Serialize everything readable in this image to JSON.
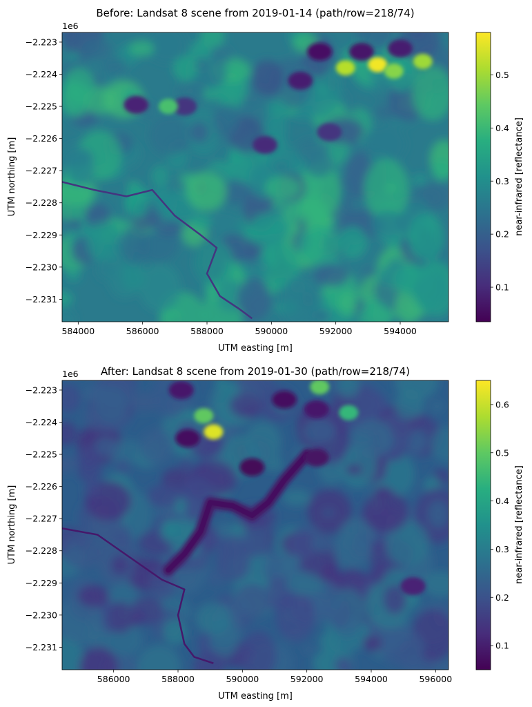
{
  "chart_data": [
    {
      "type": "heatmap",
      "title": "Before: Landsat 8 scene from 2019-01-14 (path/row=218/74)",
      "xlabel": "UTM easting [m]",
      "ylabel": "UTM northing [m]",
      "y_offset_label": "1e6",
      "xlim": [
        583500,
        595500
      ],
      "ylim": [
        -2231700,
        -2222700
      ],
      "xticks": [
        584000,
        586000,
        588000,
        590000,
        592000,
        594000
      ],
      "xtick_labels": [
        "584000",
        "586000",
        "588000",
        "590000",
        "592000",
        "594000"
      ],
      "yticks": [
        -2.223,
        -2.224,
        -2.225,
        -2.226,
        -2.227,
        -2.228,
        -2.229,
        -2.23,
        -2.231
      ],
      "ytick_labels": [
        "−2.223",
        "−2.224",
        "−2.225",
        "−2.226",
        "−2.227",
        "−2.228",
        "−2.229",
        "−2.230",
        "−2.231"
      ],
      "colorbar": {
        "label": "near-infrared [reflectance]",
        "range": [
          0.035,
          0.58
        ],
        "ticks": [
          0.1,
          0.2,
          0.3,
          0.4,
          0.5
        ],
        "tick_labels": [
          "0.1",
          "0.2",
          "0.3",
          "0.4",
          "0.5"
        ],
        "colormap": "viridis"
      },
      "features": {
        "river": [
          [
            583500,
            -2227350
          ],
          [
            584500,
            -2227600
          ],
          [
            585500,
            -2227800
          ],
          [
            586300,
            -2227600
          ],
          [
            587000,
            -2228400
          ],
          [
            587800,
            -2229000
          ],
          [
            588300,
            -2229400
          ],
          [
            588000,
            -2230200
          ],
          [
            588400,
            -2230900
          ],
          [
            589000,
            -2231300
          ],
          [
            589400,
            -2231600
          ]
        ],
        "dark_patches": [
          [
            585800,
            -2224950,
            0.09
          ],
          [
            587300,
            -2225000,
            0.12
          ],
          [
            589800,
            -2226200,
            0.1
          ],
          [
            590900,
            -2224200,
            0.08
          ],
          [
            591500,
            -2223300,
            0.06
          ],
          [
            592800,
            -2223300,
            0.07
          ],
          [
            594000,
            -2223200,
            0.08
          ],
          [
            591800,
            -2225800,
            0.12
          ]
        ],
        "bright_patches": [
          [
            592300,
            -2223800,
            0.52
          ],
          [
            593300,
            -2223700,
            0.57
          ],
          [
            593800,
            -2223900,
            0.48
          ],
          [
            594700,
            -2223600,
            0.5
          ],
          [
            586800,
            -2225000,
            0.42
          ]
        ]
      }
    },
    {
      "type": "heatmap",
      "title": "After: Landsat 8 scene from 2019-01-30 (path/row=218/74)",
      "xlabel": "UTM easting [m]",
      "ylabel": "UTM northing [m]",
      "y_offset_label": "1e6",
      "xlim": [
        584400,
        596400
      ],
      "ylim": [
        -2231700,
        -2222700
      ],
      "xticks": [
        586000,
        588000,
        590000,
        592000,
        594000,
        596000
      ],
      "xtick_labels": [
        "586000",
        "588000",
        "590000",
        "592000",
        "594000",
        "596000"
      ],
      "yticks": [
        -2.223,
        -2.224,
        -2.225,
        -2.226,
        -2.227,
        -2.228,
        -2.229,
        -2.23,
        -2.231
      ],
      "ytick_labels": [
        "−2.223",
        "−2.224",
        "−2.225",
        "−2.226",
        "−2.227",
        "−2.228",
        "−2.229",
        "−2.230",
        "−2.231"
      ],
      "colorbar": {
        "label": "near-infrared [reflectance]",
        "range": [
          0.05,
          0.65
        ],
        "ticks": [
          0.1,
          0.2,
          0.3,
          0.4,
          0.5,
          0.6
        ],
        "tick_labels": [
          "0.1",
          "0.2",
          "0.3",
          "0.4",
          "0.5",
          "0.6"
        ],
        "colormap": "viridis"
      },
      "features": {
        "mudflow": [
          [
            592000,
            -2225000
          ],
          [
            591300,
            -2225800
          ],
          [
            590800,
            -2226500
          ],
          [
            590300,
            -2226900
          ],
          [
            589700,
            -2226600
          ],
          [
            589000,
            -2226500
          ],
          [
            588700,
            -2227400
          ],
          [
            588200,
            -2228100
          ],
          [
            587700,
            -2228600
          ]
        ],
        "river": [
          [
            584400,
            -2227300
          ],
          [
            585500,
            -2227500
          ],
          [
            586500,
            -2228200
          ],
          [
            587500,
            -2228900
          ],
          [
            588200,
            -2229200
          ],
          [
            588000,
            -2230000
          ],
          [
            588200,
            -2230900
          ],
          [
            588500,
            -2231300
          ],
          [
            589100,
            -2231500
          ]
        ],
        "dark_patches": [
          [
            588300,
            -2224500,
            0.07
          ],
          [
            588100,
            -2223000,
            0.09
          ],
          [
            591300,
            -2223300,
            0.07
          ],
          [
            592300,
            -2223600,
            0.09
          ],
          [
            590300,
            -2225400,
            0.06
          ],
          [
            592300,
            -2225100,
            0.08
          ],
          [
            595300,
            -2229100,
            0.11
          ]
        ],
        "bright_patches": [
          [
            589100,
            -2224300,
            0.62
          ],
          [
            588800,
            -2223800,
            0.5
          ],
          [
            592400,
            -2222900,
            0.5
          ],
          [
            593300,
            -2223700,
            0.45
          ]
        ]
      }
    }
  ]
}
